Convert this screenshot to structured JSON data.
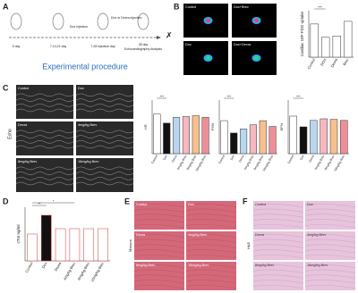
{
  "panels": {
    "A": {
      "letter": "A",
      "title": "Experimental procedure",
      "labels": [
        "0 day",
        "7,14,21 day",
        "7-28 injection day",
        "28 day",
        "Echocardiography Analysis"
      ],
      "events": [
        "Dox injection",
        "Dox or Dexra injection"
      ]
    },
    "B": {
      "letter": "B",
      "images": [
        "Control",
        "Dox+Brev",
        "Dox",
        "Dox+Dexra"
      ]
    },
    "C": {
      "letter": "C",
      "side": "Echo",
      "images": [
        "Control",
        "Dox",
        "Dexra",
        "4mg/kg Brev",
        "8mg/kg Brev",
        "16mg/kg Brev"
      ]
    },
    "D": {
      "letter": "D"
    },
    "E": {
      "letter": "E",
      "side": "Masson",
      "images": [
        "Control",
        "Dox",
        "Dexra",
        "4mg/kg Brev",
        "8mg/kg Brev",
        "16mg/kg Brev"
      ]
    },
    "F": {
      "letter": "F",
      "side": "H&E",
      "images": [
        "Control",
        "Dox",
        "Dexra",
        "4mg/kg Brev",
        "8mg/kg Brev",
        "16mg/kg Brev"
      ]
    }
  },
  "chart_data": [
    {
      "type": "bar",
      "ylabel": "Cardiac 18F-FDG uptake",
      "categories": [
        "Control",
        "DOX",
        "Dexra",
        "Brev"
      ],
      "values": [
        2.5,
        1.5,
        1.6,
        2.7
      ],
      "ylim": [
        0,
        3.5
      ],
      "colors": [
        "#ffffff",
        "#ffffff",
        "#ffffff",
        "#ffffff"
      ],
      "annotations": [
        "***"
      ]
    },
    {
      "type": "bar",
      "ylabel": "HR",
      "categories": [
        "Control",
        "Dox",
        "Dexra",
        "4mg/kg Brev",
        "8mg/kg Brev",
        "16mg/kg Brev"
      ],
      "values": [
        480,
        370,
        440,
        450,
        460,
        440
      ],
      "ylim": [
        0,
        650
      ],
      "colors": [
        "#ffffff",
        "#111111",
        "#b9d6ee",
        "#f6b8c0",
        "#f7c08e",
        "#ee8f98"
      ],
      "annotations": [
        "***"
      ]
    },
    {
      "type": "bar",
      "ylabel": "FS%",
      "categories": [
        "Control",
        "Dox",
        "Dexra",
        "4mg/kg Brev",
        "8mg/kg Brev",
        "16mg/kg Brev"
      ],
      "values": [
        40,
        25,
        30,
        35,
        40,
        33
      ],
      "ylim": [
        0,
        65
      ],
      "colors": [
        "#ffffff",
        "#111111",
        "#b9d6ee",
        "#f6b8c0",
        "#f7c08e",
        "#ee8f98"
      ],
      "annotations": [
        "***"
      ]
    },
    {
      "type": "bar",
      "ylabel": "EF%",
      "categories": [
        "Control",
        "Dox",
        "Dexra",
        "4mg/kg Brev",
        "8mg/kg Brev",
        "16mg/kg Brev"
      ],
      "values": [
        70,
        50,
        62,
        65,
        64,
        62
      ],
      "ylim": [
        0,
        100
      ],
      "colors": [
        "#ffffff",
        "#111111",
        "#b9d6ee",
        "#f6b8c0",
        "#f7c08e",
        "#ee8f98"
      ],
      "annotations": [
        "***"
      ]
    },
    {
      "type": "bar",
      "ylabel": "cTnI ng/ml",
      "categories": [
        "Control",
        "Dox",
        "Dexra",
        "4mg/kg Brev",
        "8mg/kg Brev",
        "16mg/kg Brev"
      ],
      "values": [
        0.5,
        0.85,
        0.6,
        0.6,
        0.6,
        0.6
      ],
      "ylim": [
        0,
        1
      ],
      "colors": [
        "#ffffff",
        "#111111",
        "#ffffff",
        "#ffffff",
        "#ffffff",
        "#ffffff"
      ],
      "annotations": [
        "**",
        "*"
      ]
    }
  ]
}
